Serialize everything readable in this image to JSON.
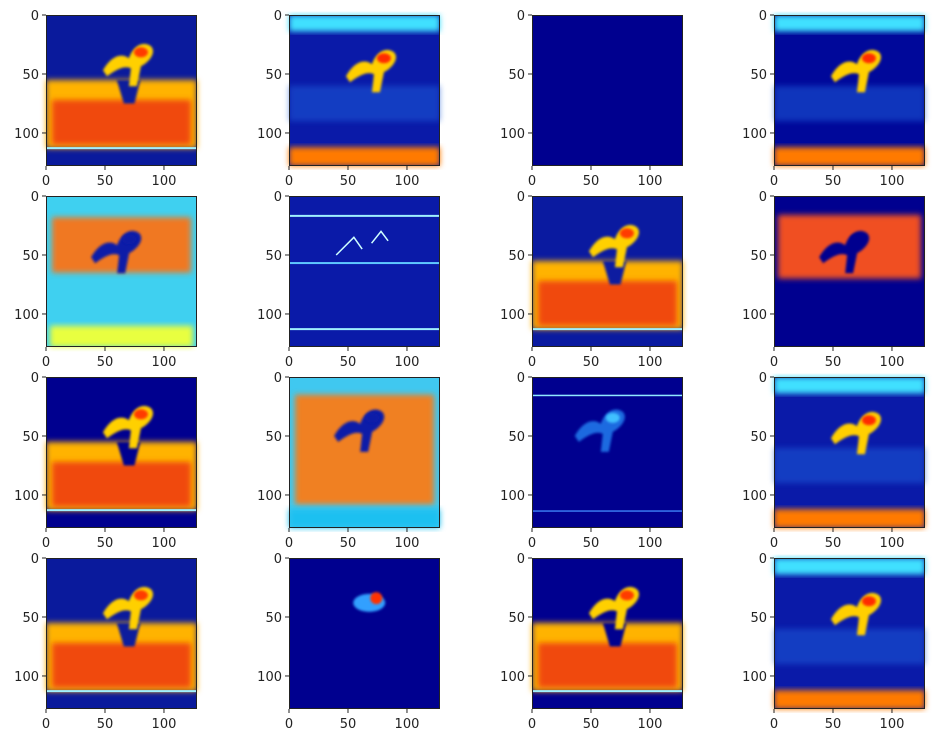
{
  "chart_data": {
    "type": "heatmap",
    "layout": {
      "rows": 4,
      "cols": 4
    },
    "colormap": "jet",
    "shared_axes": {
      "xticks": [
        0,
        50,
        100
      ],
      "yticks": [
        0,
        50,
        100
      ],
      "xlim": [
        0,
        128
      ],
      "ylim": [
        128,
        0
      ]
    },
    "panels": [
      {
        "id": "r1c1",
        "bg": "#0a1a9c",
        "pattern": "warm-bottom"
      },
      {
        "id": "r1c2",
        "bg": "#0a1aa8",
        "pattern": "bird-bottomband"
      },
      {
        "id": "r1c3",
        "bg": "#00008f",
        "pattern": "empty"
      },
      {
        "id": "r1c4",
        "bg": "#00089a",
        "pattern": "bird-bottomband"
      },
      {
        "id": "r2c1",
        "bg": "#3fd0f0",
        "pattern": "warm-top-cyan"
      },
      {
        "id": "r2c2",
        "bg": "#0a1aa8",
        "pattern": "edges"
      },
      {
        "id": "r2c3",
        "bg": "#0a1aa0",
        "pattern": "warm-bottom"
      },
      {
        "id": "r2c4",
        "bg": "#00008f",
        "pattern": "warm-top"
      },
      {
        "id": "r3c1",
        "bg": "#00008f",
        "pattern": "warm-bottom"
      },
      {
        "id": "r3c2",
        "bg": "#40c8f0",
        "pattern": "warm-full"
      },
      {
        "id": "r3c3",
        "bg": "#00008f",
        "pattern": "bird-faint"
      },
      {
        "id": "r3c4",
        "bg": "#0a1aa8",
        "pattern": "bird-bottomband"
      },
      {
        "id": "r4c1",
        "bg": "#0a1a9c",
        "pattern": "warm-bottom"
      },
      {
        "id": "r4c2",
        "bg": "#00008f",
        "pattern": "spot"
      },
      {
        "id": "r4c3",
        "bg": "#00008f",
        "pattern": "warm-bottom"
      },
      {
        "id": "r4c4",
        "bg": "#0a1aa8",
        "pattern": "bird-bottomband"
      }
    ]
  }
}
